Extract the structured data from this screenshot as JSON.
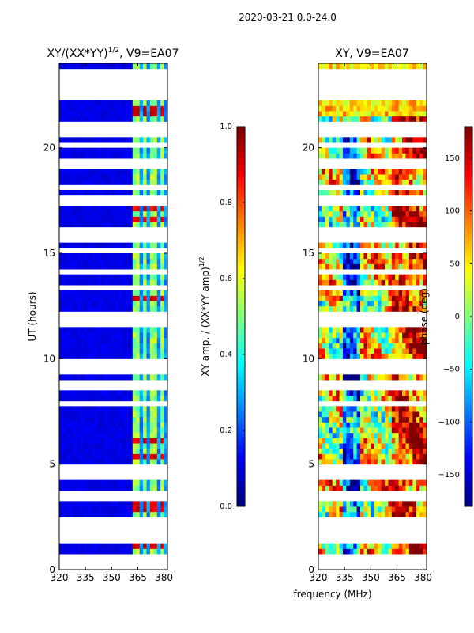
{
  "figure": {
    "suptitle": "2020-03-21 0.0-24.0",
    "xlabel_shared": "frequency (MHz)"
  },
  "colors": {
    "jet": [
      "#00007f",
      "#0000ff",
      "#007fff",
      "#00ffff",
      "#7fff7f",
      "#ffff00",
      "#ff7f00",
      "#ff0000",
      "#7f0000"
    ]
  },
  "chart_data": [
    {
      "id": "amp",
      "type": "heatmap",
      "title_base": "XY/(XX*YY)",
      "title_sup": "1/2",
      "title_rest": ", V9=EA07",
      "xlabel": "",
      "ylabel": "UT (hours)",
      "xlim": [
        320,
        382
      ],
      "ylim": [
        0,
        24
      ],
      "x_ticks": [
        320,
        335,
        350,
        365,
        380
      ],
      "y_ticks": [
        0,
        5,
        10,
        15,
        20
      ],
      "colorbar": {
        "label_base": "XY amp. / (XX*YY amp)",
        "label_sup": "1/2",
        "range": [
          0,
          1
        ],
        "ticks": [
          "0.0",
          "0.2",
          "0.4",
          "0.6",
          "0.8",
          "1.0"
        ],
        "tick_values": [
          0,
          0.2,
          0.4,
          0.6,
          0.8,
          1.0
        ]
      },
      "background_value": 0.08,
      "bright_channels_mhz": [
        [
          363,
          366
        ],
        [
          368,
          370.5
        ],
        [
          373,
          375
        ],
        [
          378,
          380.5
        ]
      ],
      "bright_channel_value": 0.45,
      "hot_hours": [
        1.2,
        3.0,
        6.1,
        5.4,
        12.9,
        16.6,
        17.1,
        21.1,
        21.8,
        22.6
      ],
      "hot_value": 0.85
    },
    {
      "id": "phase",
      "type": "heatmap",
      "title": "XY, V9=EA07",
      "xlabel": "",
      "ylabel": "",
      "xlim": [
        320,
        382
      ],
      "ylim": [
        0,
        24
      ],
      "x_ticks": [
        320,
        335,
        350,
        365,
        380
      ],
      "y_ticks": [
        0,
        5,
        10,
        15,
        20
      ],
      "colorbar": {
        "label": "phase (deg)",
        "range": [
          -180,
          180
        ],
        "ticks": [
          "−150",
          "−100",
          "−50",
          "0",
          "50",
          "100",
          "150"
        ],
        "tick_values": [
          -150,
          -100,
          -50,
          0,
          50,
          100,
          150
        ]
      },
      "band_structure_mhz": [
        [
          320,
          335,
          30
        ],
        [
          335,
          345,
          -100
        ],
        [
          345,
          362,
          40
        ],
        [
          362,
          382,
          120
        ]
      ]
    }
  ],
  "gaps_hours": [
    0.2,
    0.5,
    1.3,
    1.5,
    2.0,
    2.25,
    3.4,
    3.55,
    4.5,
    4.9,
    7.9,
    8.7,
    8.8,
    9.3,
    9.5,
    9.8,
    11.6,
    12.0,
    13.4,
    14.2,
    15.2,
    15.7,
    15.9,
    16.0,
    17.5,
    17.7,
    18.2,
    19.2,
    19.3,
    20.1,
    20.6,
    21.0,
    22.3,
    22.6,
    22.9,
    23.0,
    23.2,
    23.3,
    23.6
  ]
}
